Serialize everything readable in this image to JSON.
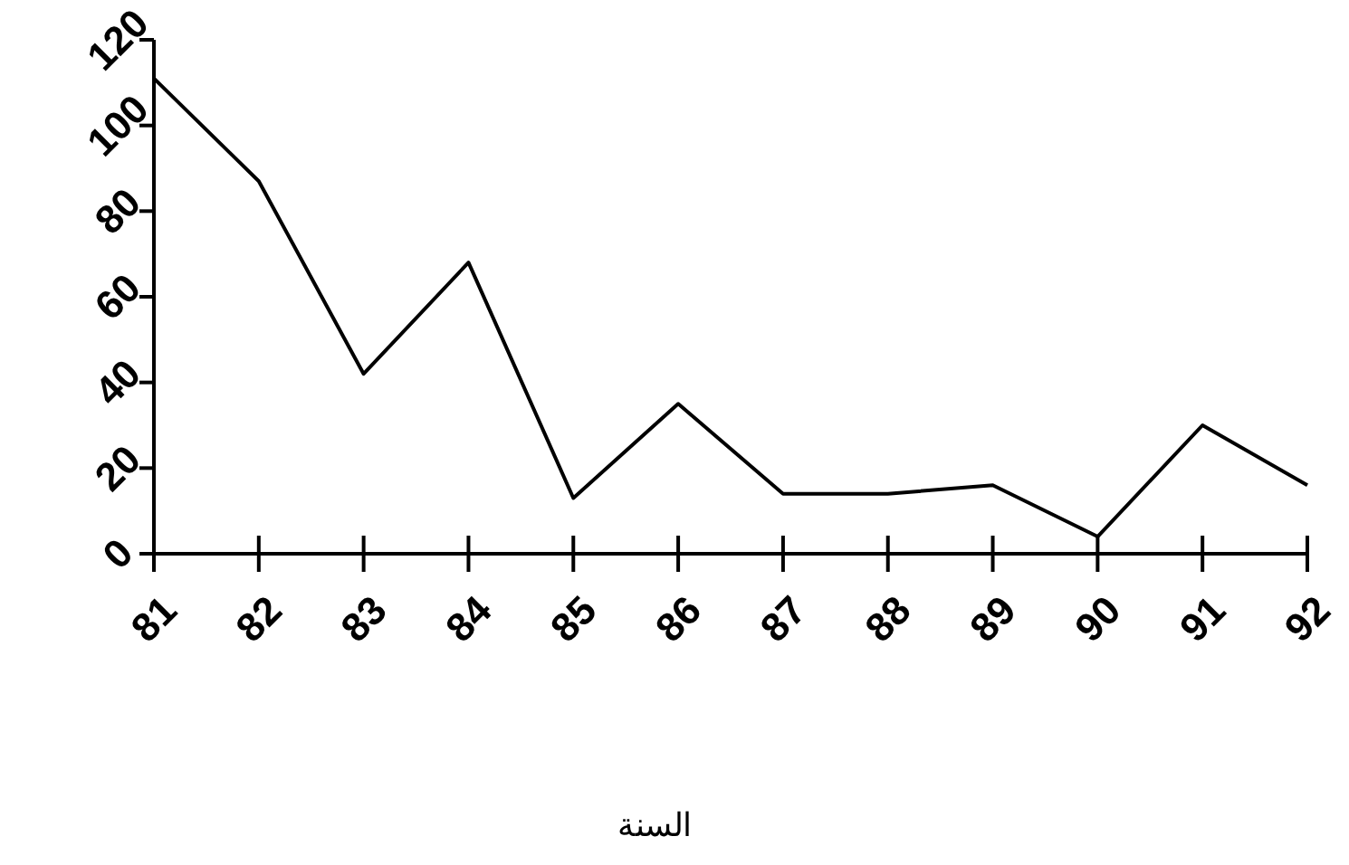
{
  "chart_data": {
    "type": "line",
    "xlabel": "السنة",
    "x": [
      81,
      82,
      83,
      84,
      85,
      86,
      87,
      88,
      89,
      90,
      91,
      92
    ],
    "series": [
      {
        "color": "#000000",
        "values": [
          111,
          87,
          42,
          68,
          13,
          35,
          14,
          14,
          16,
          4,
          30,
          16
        ]
      }
    ],
    "xlim": [
      81,
      92
    ],
    "xticks": [
      81,
      82,
      83,
      84,
      85,
      86,
      87,
      88,
      89,
      90,
      91,
      92
    ],
    "ylim": [
      0,
      120
    ],
    "yticks": [
      0,
      20,
      40,
      60,
      80,
      100,
      120
    ],
    "grid": false,
    "marker": "none",
    "line_style": "solid"
  }
}
